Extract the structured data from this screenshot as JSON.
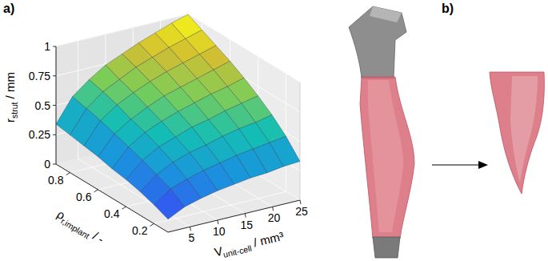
{
  "chart_data": {
    "type": "surface",
    "panel_labels": [
      "a)",
      "b)"
    ],
    "x_label": {
      "main": "V",
      "sub": "unit-cell",
      "unit": " / mm³"
    },
    "y_label": {
      "main": "ρ",
      "sub": "r,implant",
      "unit": " / -"
    },
    "z_label": {
      "main": "r",
      "sub": "strut",
      "unit": " / mm"
    },
    "x": [
      1,
      4,
      7,
      10,
      13,
      16,
      19,
      22,
      25
    ],
    "y": [
      0.1,
      0.2,
      0.3,
      0.4,
      0.5,
      0.6,
      0.7,
      0.8,
      0.9
    ],
    "z": [
      [
        0.11,
        0.18,
        0.22,
        0.25,
        0.27,
        0.29,
        0.3,
        0.32,
        0.33
      ],
      [
        0.16,
        0.26,
        0.31,
        0.35,
        0.38,
        0.41,
        0.43,
        0.45,
        0.47
      ],
      [
        0.2,
        0.31,
        0.38,
        0.43,
        0.46,
        0.5,
        0.53,
        0.55,
        0.58
      ],
      [
        0.23,
        0.36,
        0.44,
        0.49,
        0.54,
        0.57,
        0.61,
        0.64,
        0.67
      ],
      [
        0.25,
        0.4,
        0.49,
        0.55,
        0.6,
        0.64,
        0.68,
        0.71,
        0.75
      ],
      [
        0.28,
        0.44,
        0.53,
        0.6,
        0.66,
        0.7,
        0.74,
        0.78,
        0.82
      ],
      [
        0.3,
        0.48,
        0.58,
        0.65,
        0.71,
        0.76,
        0.8,
        0.84,
        0.88
      ],
      [
        0.32,
        0.51,
        0.62,
        0.69,
        0.76,
        0.81,
        0.86,
        0.9,
        0.94
      ],
      [
        0.34,
        0.54,
        0.65,
        0.74,
        0.8,
        0.86,
        0.91,
        0.96,
        1.0
      ]
    ],
    "xlim": [
      1,
      25
    ],
    "xticks": [
      5,
      10,
      15,
      20,
      25
    ],
    "ylim": [
      0.1,
      0.9
    ],
    "yticks": [
      0.2,
      0.4,
      0.6,
      0.8
    ],
    "zlim": [
      0,
      1
    ],
    "zticks": [
      0,
      0.25,
      0.5,
      0.75,
      1
    ],
    "grid": true
  }
}
